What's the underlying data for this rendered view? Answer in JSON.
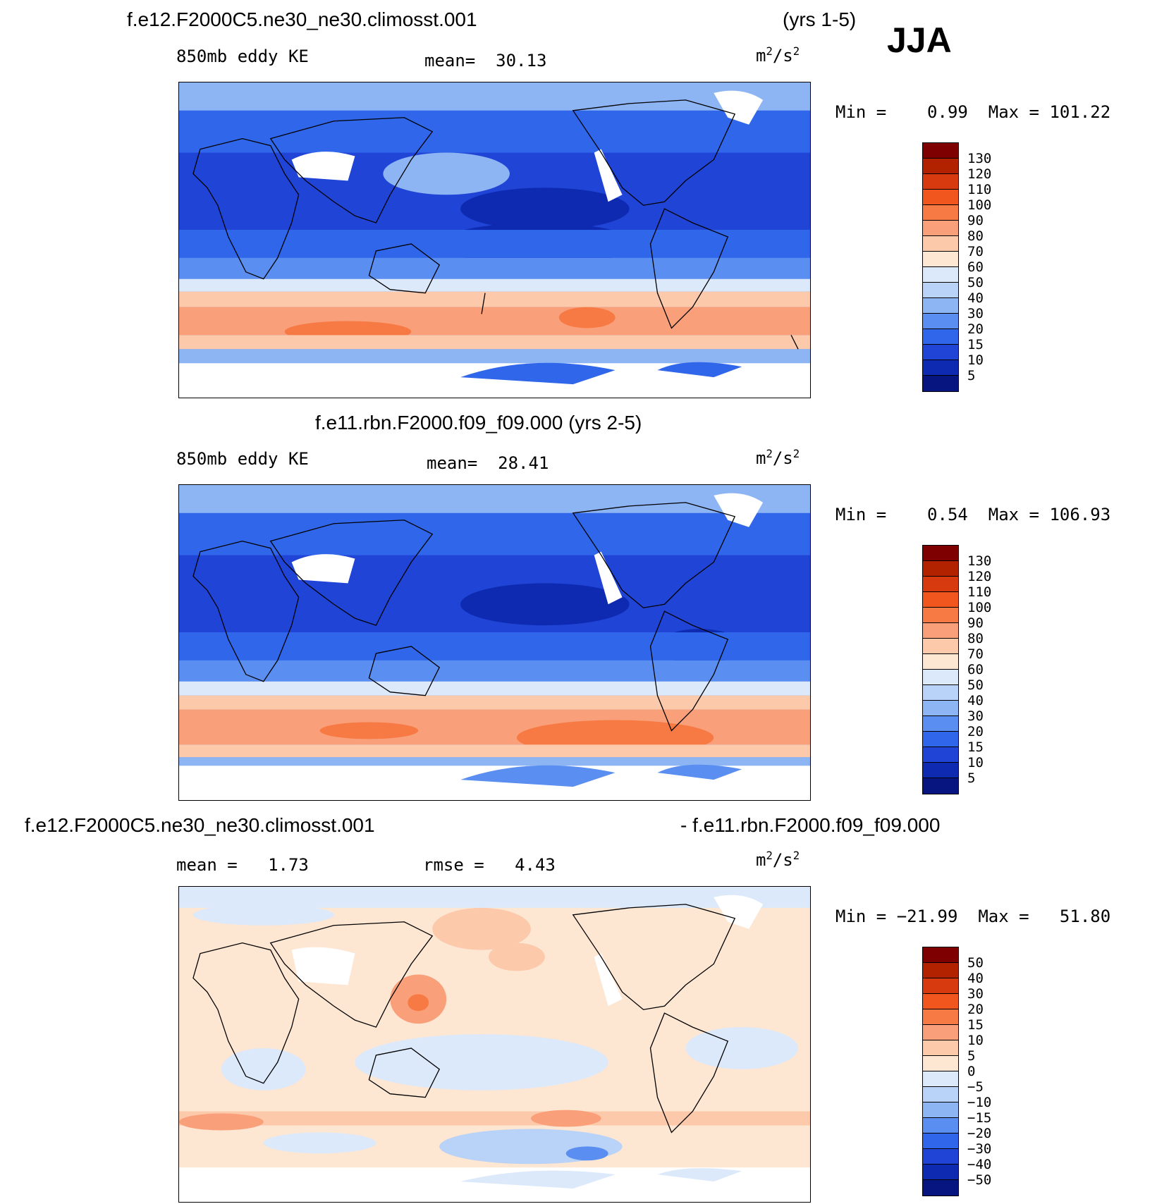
{
  "season": "JJA",
  "units_base": "m",
  "units_exp": "2",
  "units_sep": "/s",
  "units_exp2": "2",
  "panel1": {
    "title": "f.e12.F2000C5.ne30_ne30.climosst.001",
    "years": "(yrs 1-5)",
    "variable": "850mb eddy KE",
    "mean_label": "mean=",
    "mean_value": "30.13",
    "min_label": "Min =",
    "min_value": "0.99",
    "max_label": "Max =",
    "max_value": "101.22"
  },
  "panel2": {
    "title": "f.e11.rbn.F2000.f09_f09.000 (yrs 2-5)",
    "variable": "850mb eddy KE",
    "mean_label": "mean=",
    "mean_value": "28.41",
    "min_label": "Min =",
    "min_value": "0.54",
    "max_label": "Max =",
    "max_value": "106.93"
  },
  "panel3": {
    "title_left": "f.e12.F2000C5.ne30_ne30.climosst.001",
    "title_right": "- f.e11.rbn.F2000.f09_f09.000",
    "mean_label": "mean =",
    "mean_value": "1.73",
    "rmse_label": "rmse =",
    "rmse_value": "4.43",
    "min_label": "Min =",
    "min_value": "−21.99",
    "max_label": "Max =",
    "max_value": "51.80"
  },
  "colorbar_abs": {
    "levels": [
      "130",
      "120",
      "110",
      "100",
      "90",
      "80",
      "70",
      "60",
      "50",
      "40",
      "30",
      "20",
      "15",
      "10",
      "5"
    ],
    "colors": [
      "#7f0000",
      "#b22200",
      "#d83a10",
      "#f2561f",
      "#f77a45",
      "#f9a07a",
      "#fcc9aa",
      "#fde6d2",
      "#dce9fb",
      "#b9d2f7",
      "#8db4f3",
      "#5a8ef0",
      "#2f66ea",
      "#1f44d6",
      "#0d2ab0",
      "#06157f"
    ]
  },
  "colorbar_diff": {
    "levels": [
      "50",
      "40",
      "30",
      "20",
      "15",
      "10",
      "5",
      "0",
      "−5",
      "−10",
      "−15",
      "−20",
      "−30",
      "−40",
      "−50"
    ],
    "colors": [
      "#7f0000",
      "#b22200",
      "#d83a10",
      "#f2561f",
      "#f77a45",
      "#f9a07a",
      "#fcc9aa",
      "#fde6d2",
      "#dce9fb",
      "#b9d2f7",
      "#8db4f3",
      "#5a8ef0",
      "#2f66ea",
      "#1f44d6",
      "#0d2ab0",
      "#06157f"
    ]
  }
}
